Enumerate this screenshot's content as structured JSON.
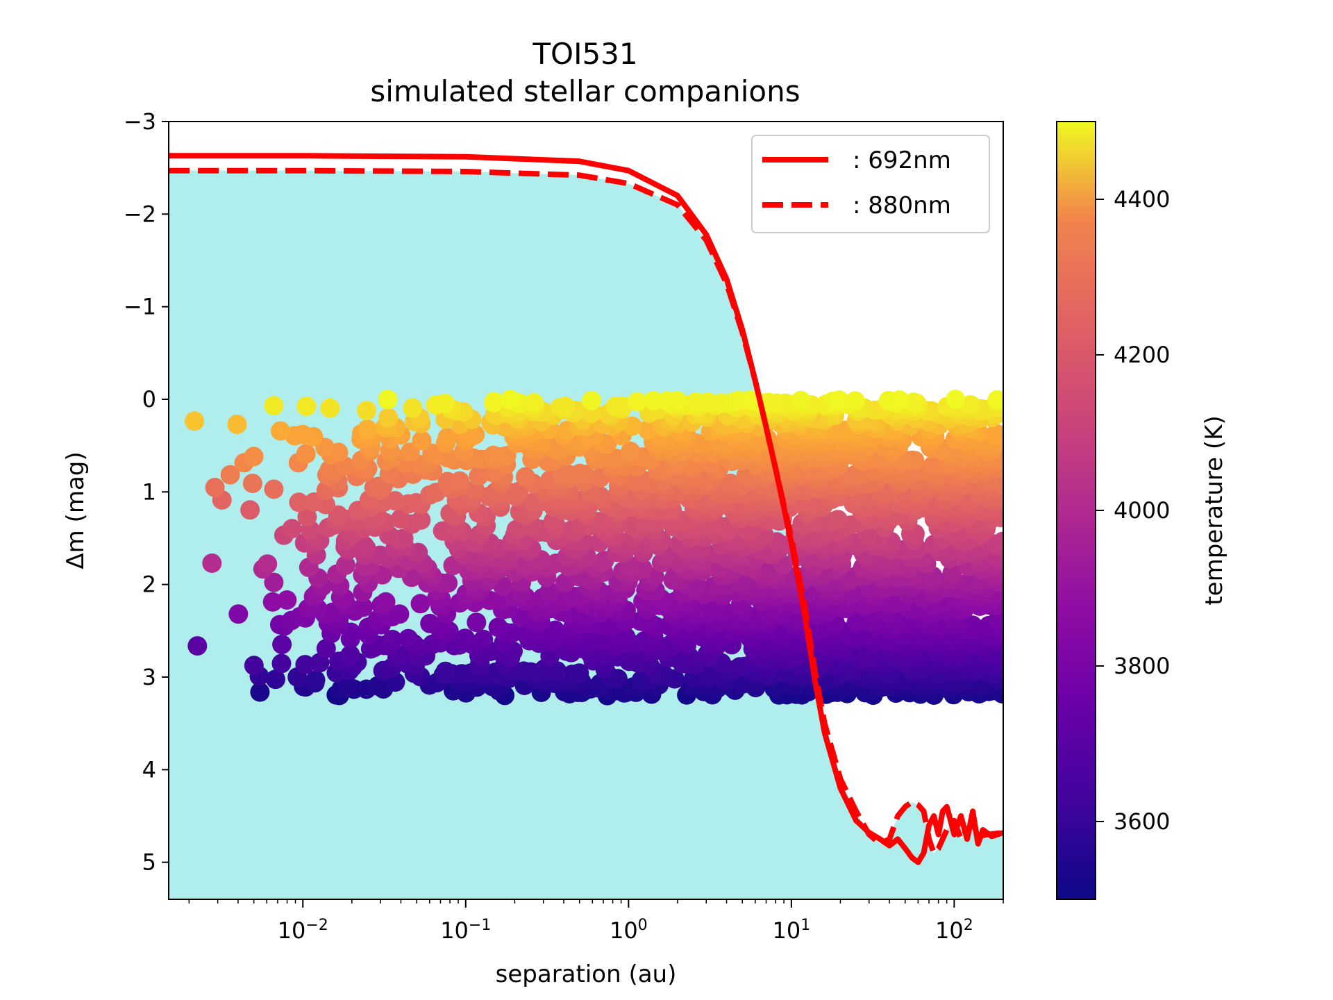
{
  "chart_data": {
    "type": "scatter",
    "title": "TOI531",
    "subtitle": "simulated stellar companions",
    "xlabel": "separation (au)",
    "ylabel": "Δm (mag)",
    "xscale": "log",
    "xlim": [
      0.0015,
      200
    ],
    "ylim": [
      5.4,
      -3.0
    ],
    "y_inverted": true,
    "xticks": [
      {
        "value": 0.01,
        "base": "10",
        "exp": "−2"
      },
      {
        "value": 0.1,
        "base": "10",
        "exp": "−1"
      },
      {
        "value": 1,
        "base": "10",
        "exp": "0"
      },
      {
        "value": 10,
        "base": "10",
        "exp": "1"
      },
      {
        "value": 100,
        "base": "10",
        "exp": "2"
      }
    ],
    "yticks": [
      {
        "value": -3,
        "label": "−3"
      },
      {
        "value": -2,
        "label": "−2"
      },
      {
        "value": -1,
        "label": "−1"
      },
      {
        "value": 0,
        "label": "0"
      },
      {
        "value": 1,
        "label": "1"
      },
      {
        "value": 2,
        "label": "2"
      },
      {
        "value": 3,
        "label": "3"
      },
      {
        "value": 4,
        "label": "4"
      },
      {
        "value": 5,
        "label": "5"
      }
    ],
    "fill_color": "#b0eeee",
    "series": [
      {
        "name": ": 692nm",
        "style": "solid",
        "color": "#ff0000",
        "points": [
          [
            0.0015,
            -2.63
          ],
          [
            0.01,
            -2.63
          ],
          [
            0.1,
            -2.62
          ],
          [
            0.5,
            -2.57
          ],
          [
            1,
            -2.47
          ],
          [
            2,
            -2.2
          ],
          [
            3,
            -1.78
          ],
          [
            4,
            -1.3
          ],
          [
            5,
            -0.75
          ],
          [
            6,
            -0.2
          ],
          [
            7,
            0.3
          ],
          [
            8,
            0.75
          ],
          [
            10,
            1.55
          ],
          [
            12,
            2.3
          ],
          [
            14,
            3.05
          ],
          [
            16,
            3.6
          ],
          [
            20,
            4.2
          ],
          [
            25,
            4.55
          ],
          [
            30,
            4.68
          ],
          [
            35,
            4.75
          ],
          [
            40,
            4.82
          ],
          [
            45,
            4.75
          ],
          [
            50,
            4.85
          ],
          [
            55,
            4.95
          ],
          [
            60,
            5.0
          ],
          [
            65,
            4.9
          ],
          [
            70,
            4.6
          ],
          [
            75,
            4.5
          ],
          [
            80,
            4.7
          ],
          [
            85,
            4.45
          ],
          [
            90,
            4.4
          ],
          [
            95,
            4.55
          ],
          [
            100,
            4.7
          ],
          [
            110,
            4.5
          ],
          [
            120,
            4.75
          ],
          [
            130,
            4.45
          ],
          [
            140,
            4.8
          ],
          [
            150,
            4.65
          ],
          [
            170,
            4.72
          ],
          [
            200,
            4.68
          ]
        ]
      },
      {
        "name": ": 880nm",
        "style": "dashed",
        "color": "#ff0000",
        "points": [
          [
            0.0015,
            -2.47
          ],
          [
            0.01,
            -2.47
          ],
          [
            0.1,
            -2.46
          ],
          [
            0.5,
            -2.42
          ],
          [
            1,
            -2.33
          ],
          [
            2,
            -2.1
          ],
          [
            3,
            -1.72
          ],
          [
            4,
            -1.25
          ],
          [
            5,
            -0.72
          ],
          [
            6,
            -0.2
          ],
          [
            7,
            0.3
          ],
          [
            8,
            0.75
          ],
          [
            10,
            1.5
          ],
          [
            12,
            2.2
          ],
          [
            14,
            2.95
          ],
          [
            16,
            3.5
          ],
          [
            20,
            4.1
          ],
          [
            25,
            4.45
          ],
          [
            30,
            4.7
          ],
          [
            35,
            4.8
          ],
          [
            40,
            4.75
          ],
          [
            45,
            4.5
          ],
          [
            50,
            4.4
          ],
          [
            55,
            4.35
          ],
          [
            60,
            4.38
          ],
          [
            65,
            4.45
          ],
          [
            70,
            4.75
          ],
          [
            75,
            4.9
          ],
          [
            80,
            4.85
          ],
          [
            90,
            4.65
          ],
          [
            100,
            4.55
          ],
          [
            110,
            4.75
          ],
          [
            120,
            4.65
          ],
          [
            130,
            4.58
          ],
          [
            140,
            4.72
          ],
          [
            160,
            4.7
          ],
          [
            200,
            4.68
          ]
        ]
      }
    ],
    "scatter": {
      "description": "simulated companions colored by temperature",
      "x_range": [
        0.002,
        200
      ],
      "y_range": [
        0.0,
        3.2
      ]
    },
    "colorbar": {
      "label": "temperature (K)",
      "range": [
        3500,
        4500
      ],
      "colormap": "plasma",
      "ticks": [
        {
          "value": 3600,
          "label": "3600"
        },
        {
          "value": 3800,
          "label": "3800"
        },
        {
          "value": 4000,
          "label": "4000"
        },
        {
          "value": 4200,
          "label": "4200"
        },
        {
          "value": 4400,
          "label": "4400"
        }
      ]
    },
    "legend_position": "top-right"
  }
}
